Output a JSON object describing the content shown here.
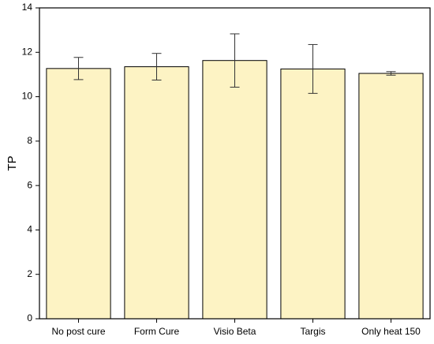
{
  "chart_data": {
    "type": "bar",
    "y_label": "TP",
    "categories": [
      "No post cure",
      "Form Cure",
      "Visio Beta",
      "Targis",
      "Only heat 150"
    ],
    "values": [
      11.27,
      11.35,
      11.63,
      11.25,
      11.05
    ],
    "errors": [
      0.5,
      0.6,
      1.2,
      1.1,
      0.08
    ],
    "color": "#fdf3c4",
    "ylim": [
      0,
      14
    ],
    "yticks": [
      0,
      2,
      4,
      6,
      8,
      10,
      12,
      14
    ],
    "grid": false
  }
}
